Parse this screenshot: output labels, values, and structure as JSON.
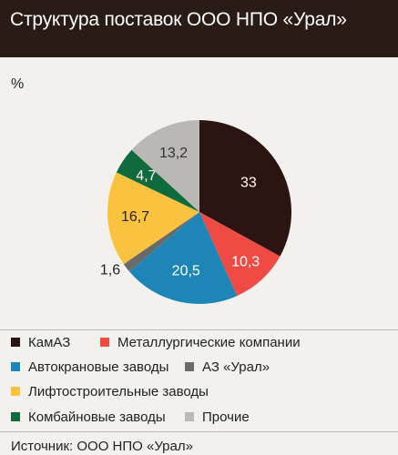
{
  "header": {
    "title": "Структура поставок ООО НПО «Урал»"
  },
  "unit": "%",
  "chart_data": {
    "type": "pie",
    "title": "Структура поставок ООО НПО «Урал»",
    "unit": "%",
    "categories": [
      "КамАЗ",
      "Металлургические компании",
      "Автокрановые заводы",
      "АЗ «Урал»",
      "Лифтостроительные заводы",
      "Комбайновые заводы",
      "Прочие"
    ],
    "values": [
      33,
      10.3,
      20.5,
      1.6,
      16.7,
      4.7,
      13.2
    ],
    "labels": [
      "33",
      "10,3",
      "20,5",
      "1,6",
      "16,7",
      "4,7",
      "13,2"
    ],
    "colors": [
      "#2b1412",
      "#f04a45",
      "#1e86b6",
      "#6a6a6a",
      "#fbc23f",
      "#0f6a3c",
      "#b9b8b4"
    ],
    "label_colors": [
      "#ffffff",
      "#ffffff",
      "#ffffff",
      "#222222",
      "#222222",
      "#ffffff",
      "#333333"
    ],
    "start": "12 o'clock",
    "direction": "clockwise",
    "legend_position": "bottom"
  },
  "legend": [
    {
      "label": "КамАЗ",
      "color": "#2b1412"
    },
    {
      "label": "Металлургические компании",
      "color": "#f04a45"
    },
    {
      "label": "Автокрановые заводы",
      "color": "#1e86b6"
    },
    {
      "label": "АЗ «Урал»",
      "color": "#6a6a6a"
    },
    {
      "label": "Лифтостроительные заводы",
      "color": "#fbc23f"
    },
    {
      "label": "Комбайновые заводы",
      "color": "#0f6a3c"
    },
    {
      "label": "Прочие",
      "color": "#b9b8b4"
    }
  ],
  "source": "Источник: ООО НПО «Урал»"
}
